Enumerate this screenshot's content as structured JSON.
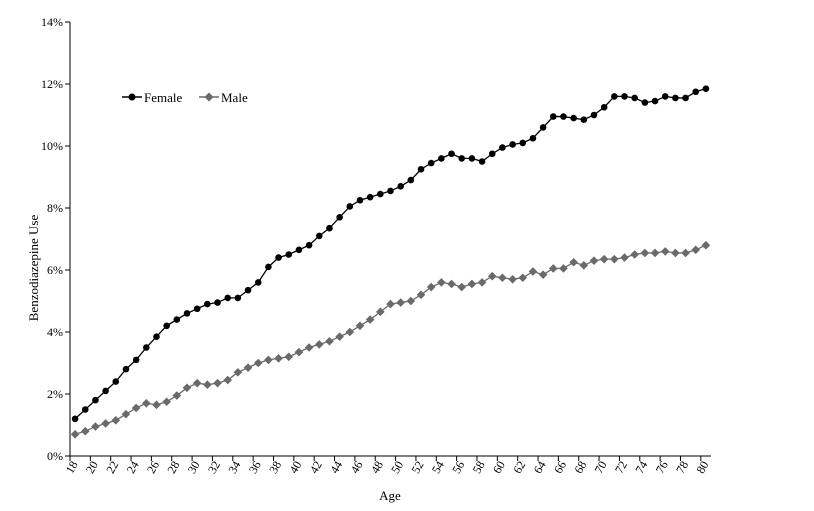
{
  "chart_data": {
    "type": "line",
    "title": "",
    "xlabel": "Age",
    "ylabel": "Benzodiazepine Use",
    "ylim": [
      0,
      14
    ],
    "y_ticks": [
      "0%",
      "2%",
      "4%",
      "6%",
      "8%",
      "10%",
      "12%",
      "14%"
    ],
    "x_range": [
      18,
      80
    ],
    "x": [
      18,
      19,
      20,
      21,
      22,
      23,
      24,
      25,
      26,
      27,
      28,
      29,
      30,
      31,
      32,
      33,
      34,
      35,
      36,
      37,
      38,
      39,
      40,
      41,
      42,
      43,
      44,
      45,
      46,
      47,
      48,
      49,
      50,
      51,
      52,
      53,
      54,
      55,
      56,
      57,
      58,
      59,
      60,
      61,
      62,
      63,
      64,
      65,
      66,
      67,
      68,
      69,
      70,
      71,
      72,
      73,
      74,
      75,
      76,
      77,
      78,
      79,
      80
    ],
    "x_tick_labels": [
      "18",
      "20",
      "22",
      "24",
      "26",
      "28",
      "30",
      "32",
      "34",
      "36",
      "38",
      "40",
      "42",
      "44",
      "46",
      "48",
      "50",
      "52",
      "54",
      "56",
      "58",
      "60",
      "62",
      "64",
      "66",
      "68",
      "70",
      "72",
      "74",
      "76",
      "78",
      "80"
    ],
    "grid": false,
    "legend_position": "top-left",
    "series": [
      {
        "name": "Female",
        "color": "#000000",
        "marker": "circle",
        "values": [
          1.2,
          1.5,
          1.8,
          2.1,
          2.4,
          2.8,
          3.1,
          3.5,
          3.85,
          4.2,
          4.4,
          4.6,
          4.75,
          4.9,
          4.95,
          5.1,
          5.1,
          5.35,
          5.6,
          6.1,
          6.4,
          6.5,
          6.65,
          6.8,
          7.1,
          7.35,
          7.7,
          8.05,
          8.25,
          8.35,
          8.45,
          8.55,
          8.7,
          8.9,
          9.25,
          9.45,
          9.6,
          9.75,
          9.6,
          9.6,
          9.5,
          9.75,
          9.95,
          10.05,
          10.1,
          10.25,
          10.6,
          10.95,
          10.95,
          10.9,
          10.85,
          11.0,
          11.25,
          11.6,
          11.6,
          11.55,
          11.4,
          11.45,
          11.6,
          11.55,
          11.55,
          11.75,
          11.85
        ]
      },
      {
        "name": "Male",
        "color": "#6a6a6a",
        "marker": "diamond",
        "values": [
          0.7,
          0.8,
          0.95,
          1.05,
          1.15,
          1.35,
          1.55,
          1.7,
          1.65,
          1.75,
          1.95,
          2.2,
          2.35,
          2.3,
          2.35,
          2.45,
          2.7,
          2.85,
          3.0,
          3.1,
          3.15,
          3.2,
          3.35,
          3.5,
          3.6,
          3.7,
          3.85,
          4.0,
          4.2,
          4.4,
          4.65,
          4.9,
          4.95,
          5.0,
          5.2,
          5.45,
          5.6,
          5.55,
          5.45,
          5.55,
          5.6,
          5.8,
          5.75,
          5.7,
          5.75,
          5.95,
          5.85,
          6.05,
          6.05,
          6.25,
          6.15,
          6.3,
          6.35,
          6.35,
          6.4,
          6.5,
          6.55,
          6.55,
          6.6,
          6.55,
          6.55,
          6.65,
          6.8
        ]
      }
    ]
  }
}
